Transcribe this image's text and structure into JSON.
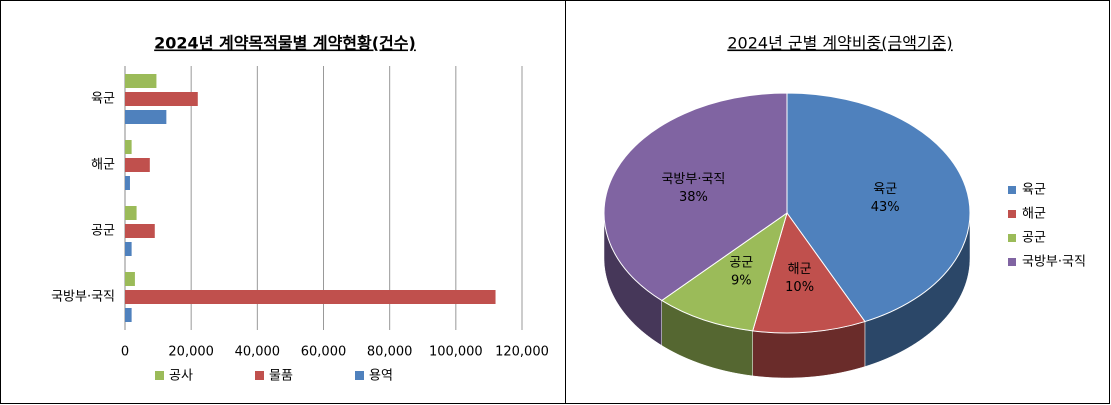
{
  "chart_data": [
    {
      "type": "bar",
      "title": "2024년 계약목적물별 계약현황(건수)",
      "categories": [
        "육군",
        "해군",
        "공군",
        "국방부·국직"
      ],
      "series": [
        {
          "name": "공사",
          "color": "#9bbb59",
          "values": [
            9500,
            2000,
            3500,
            3000
          ]
        },
        {
          "name": "물품",
          "color": "#c0504d",
          "values": [
            22000,
            7500,
            9000,
            112000
          ]
        },
        {
          "name": "용역",
          "color": "#4f81bd",
          "values": [
            12500,
            1500,
            2000,
            2000
          ]
        }
      ],
      "xlim": [
        0,
        120000
      ],
      "xticks": [
        0,
        {
          "value": 20000,
          "label": "20,000"
        },
        {
          "value": 40000,
          "label": "40,000"
        },
        {
          "value": 60000,
          "label": "60,000"
        },
        {
          "value": 80000,
          "label": "80,000"
        },
        {
          "value": 100000,
          "label": "100,000"
        },
        {
          "value": 120000,
          "label": "120,000"
        }
      ],
      "grid": true,
      "legend": "bottom"
    },
    {
      "type": "pie",
      "title": "2024년 군별 계약비중(금액기준)",
      "categories": [
        "육군",
        "해군",
        "공군",
        "국방부·국직"
      ],
      "values": [
        43,
        10,
        9,
        38
      ],
      "value_labels": [
        "43%",
        "10%",
        "9%",
        "38%"
      ],
      "colors": [
        "#4f81bd",
        "#c0504d",
        "#9bbb59",
        "#8064a2"
      ],
      "legend": "right"
    }
  ]
}
